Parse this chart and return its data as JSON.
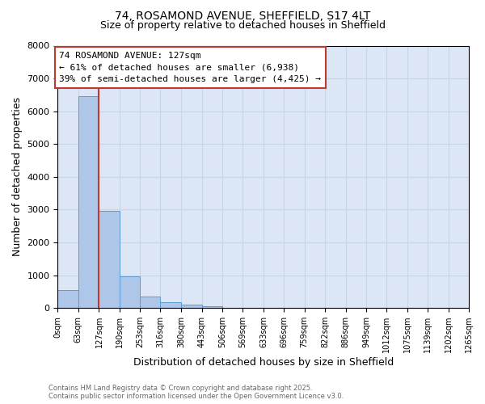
{
  "title_line1": "74, ROSAMOND AVENUE, SHEFFIELD, S17 4LT",
  "title_line2": "Size of property relative to detached houses in Sheffield",
  "xlabel": "Distribution of detached houses by size in Sheffield",
  "ylabel": "Number of detached properties",
  "annotation_title": "74 ROSAMOND AVENUE: 127sqm",
  "annotation_line2": "← 61% of detached houses are smaller (6,938)",
  "annotation_line3": "39% of semi-detached houses are larger (4,425) →",
  "bin_edges": [
    0,
    63,
    127,
    190,
    253,
    316,
    380,
    443,
    506,
    569,
    633,
    696,
    759,
    822,
    886,
    949,
    1012,
    1075,
    1139,
    1202,
    1265
  ],
  "bar_heights": [
    550,
    6450,
    2950,
    975,
    350,
    175,
    100,
    60,
    0,
    0,
    0,
    0,
    0,
    0,
    0,
    0,
    0,
    0,
    0,
    0
  ],
  "bar_color": "#aec6e8",
  "bar_edge_color": "#5b9bd5",
  "vline_color": "#c0392b",
  "vline_x": 127,
  "ylim": [
    0,
    8000
  ],
  "yticks": [
    0,
    1000,
    2000,
    3000,
    4000,
    5000,
    6000,
    7000,
    8000
  ],
  "grid_color": "#c8d4e8",
  "background_color": "#dce6f5",
  "footnote_line1": "Contains HM Land Registry data © Crown copyright and database right 2025.",
  "footnote_line2": "Contains public sector information licensed under the Open Government Licence v3.0."
}
